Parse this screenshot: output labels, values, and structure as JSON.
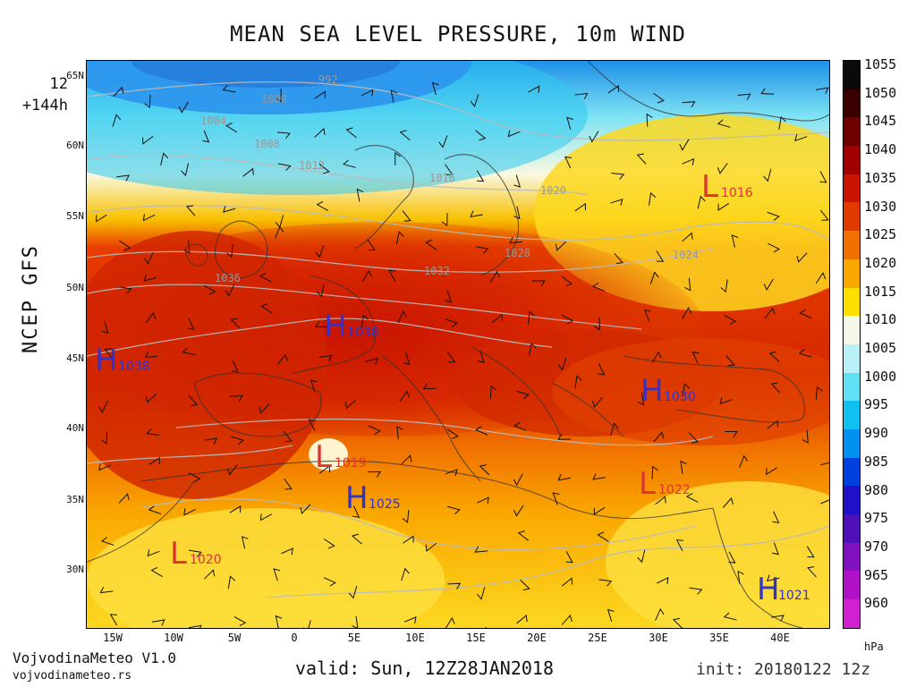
{
  "header": {
    "title": "MEAN SEA LEVEL PRESSURE, 10m WIND"
  },
  "run": {
    "hour": "12",
    "lead": "+144h"
  },
  "model": {
    "label": "NCEP GFS"
  },
  "footer": {
    "brand": "VojvodinaMeteo V1.0",
    "site": "vojvodinameteo.rs",
    "valid": "valid: Sun, 12Z28JAN2018",
    "init": "init: 20180122 12z"
  },
  "axes": {
    "lat_labels": [
      "65N",
      "60N",
      "55N",
      "50N",
      "45N",
      "40N",
      "35N",
      "30N"
    ],
    "lon_labels": [
      "15W",
      "10W",
      "5W",
      "0",
      "5E",
      "10E",
      "15E",
      "20E",
      "25E",
      "30E",
      "35E",
      "40E"
    ]
  },
  "colorbar": {
    "unit": "hPa",
    "ticks": [
      "1055",
      "1050",
      "1045",
      "1040",
      "1035",
      "1030",
      "1025",
      "1020",
      "1015",
      "1010",
      "1005",
      "1000",
      "995",
      "990",
      "985",
      "980",
      "975",
      "970",
      "965",
      "960"
    ],
    "colors": [
      "#0a0a0a",
      "#3a0000",
      "#6e0000",
      "#a00000",
      "#c81400",
      "#e03a00",
      "#f07000",
      "#faa800",
      "#fde000",
      "#f4f8e8",
      "#b8f0f8",
      "#60e0f4",
      "#10c0f0",
      "#0090f0",
      "#0040e0",
      "#2010c8",
      "#5010b8",
      "#8010c0",
      "#b010c8",
      "#d020d0"
    ]
  },
  "systems": [
    {
      "type": "H",
      "value": "1038",
      "color": "#3333cc"
    },
    {
      "type": "H",
      "value": "1038",
      "color": "#3333cc"
    },
    {
      "type": "H",
      "value": "1030",
      "color": "#3333cc"
    },
    {
      "type": "H",
      "value": "1025",
      "color": "#3333cc"
    },
    {
      "type": "H",
      "value": "1021",
      "color": "#3333cc"
    },
    {
      "type": "L",
      "value": "1019",
      "color": "#dd3333"
    },
    {
      "type": "L",
      "value": "1020",
      "color": "#dd3333"
    },
    {
      "type": "L",
      "value": "1022",
      "color": "#dd3333"
    },
    {
      "type": "L",
      "value": "1016",
      "color": "#dd3333"
    }
  ],
  "isobars": [
    "992",
    "1000",
    "1004",
    "1008",
    "1012",
    "1016",
    "1020",
    "1024",
    "1028",
    "1032",
    "1036"
  ]
}
